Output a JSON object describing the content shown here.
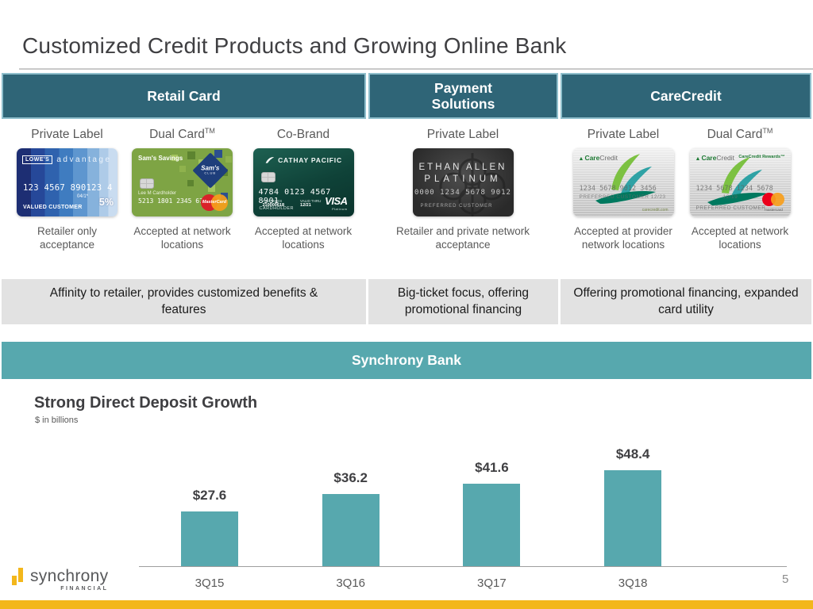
{
  "slide": {
    "title": "Customized Credit Products and Growing Online Bank",
    "page_number": "5"
  },
  "colors": {
    "header_fill": "#2F6577",
    "header_border": "#8FBFCC",
    "banner_teal": "#57A8AE",
    "band_gray": "#E2E2E2",
    "accent_gold": "#F3B71B",
    "bar_teal": "#57A8AE"
  },
  "sections": {
    "retail": {
      "header": "Retail Card",
      "summary": "Affinity to retailer, provides customized benefits & features"
    },
    "payment": {
      "header": "Payment Solutions",
      "summary": "Big-ticket focus, offering promotional financing"
    },
    "care": {
      "header": "CareCredit",
      "summary": "Offering promotional financing, expanded card utility"
    }
  },
  "products": [
    {
      "label": "Private Label",
      "tm": "",
      "acceptance": "Retailer only acceptance"
    },
    {
      "label": "Dual Card",
      "tm": "TM",
      "acceptance": "Accepted at network locations"
    },
    {
      "label": "Co-Brand",
      "tm": "",
      "acceptance": "Accepted at network locations"
    },
    {
      "label": "Private Label",
      "tm": "",
      "acceptance": "Retailer and private network acceptance"
    },
    {
      "label": "Private Label",
      "tm": "",
      "acceptance": "Accepted at provider network locations"
    },
    {
      "label": "Dual Card",
      "tm": "TM",
      "acceptance": "Accepted at network locations"
    }
  ],
  "cards": {
    "lowes": {
      "brand": "LOWE'S",
      "product": "advantage",
      "number": "123 4567 890123 4",
      "expiry": "04/1*",
      "holder": "VALUED CUSTOMER",
      "badge": "5%"
    },
    "sams": {
      "brand": "Sam's Savings",
      "club_line1": "Sam's",
      "club_line2": "CLUB",
      "holder": "Lee M Cardholder",
      "number": "5213 1801 2345 6789",
      "network": "MasterCard"
    },
    "cathay": {
      "brand": "CATHAY PACIFIC",
      "number": "4784 0123 4567 8901",
      "miles_label": "ASIA MILES",
      "miles": "210000618",
      "valid_label": "VALID THRU",
      "valid": "12/21",
      "holder": "CARDHOLDER",
      "network": "VISA",
      "tier": "Platinum"
    },
    "ethan": {
      "line1": "ETHAN ALLEN",
      "line2": "PLATINUM",
      "number": "0000 1234 5678 9012",
      "holder": "PREFERRED CUSTOMER"
    },
    "care_pl": {
      "brand_care": "Care",
      "brand_credit": "Credit",
      "number": "1234 5678 9012 3456",
      "row2": "PREFERRED CUSTOMER  12/23",
      "site": "carecredit.com"
    },
    "care_dual": {
      "brand_care": "Care",
      "brand_credit": "Credit",
      "rewards": "CareCredit Rewards™",
      "number": "1234 5678 1234 5678",
      "expiry": "12/19",
      "holder": "PREFERRED CUSTOMER",
      "network": "mastercard"
    }
  },
  "bank": {
    "banner": "Synchrony Bank"
  },
  "chart_data": {
    "type": "bar",
    "title": "Strong Direct Deposit Growth",
    "subtitle": "$ in billions",
    "categories": [
      "3Q15",
      "3Q16",
      "3Q17",
      "3Q18"
    ],
    "values": [
      27.6,
      36.2,
      41.6,
      48.4
    ],
    "data_labels": [
      "$27.6",
      "$36.2",
      "$41.6",
      "$48.4"
    ],
    "xlabel": "",
    "ylabel": "",
    "ylim": [
      0,
      55
    ],
    "grid": false,
    "legend": false,
    "bar_color": "#57A8AE"
  },
  "footer": {
    "logo_name": "synchrony",
    "logo_sub": "FINANCIAL"
  }
}
